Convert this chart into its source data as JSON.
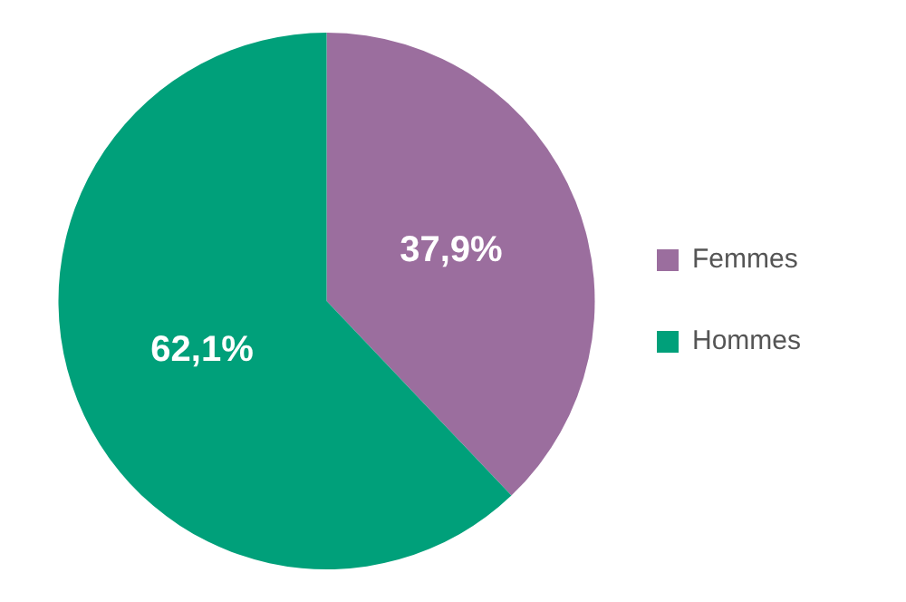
{
  "chart_data": {
    "type": "pie",
    "categories": [
      "Femmes",
      "Hommes"
    ],
    "values": [
      37.9,
      62.1
    ],
    "colors": [
      "#9b6e9e",
      "#00a07a"
    ],
    "value_labels": [
      "37,9%",
      "62,1%"
    ],
    "legend": "right"
  }
}
